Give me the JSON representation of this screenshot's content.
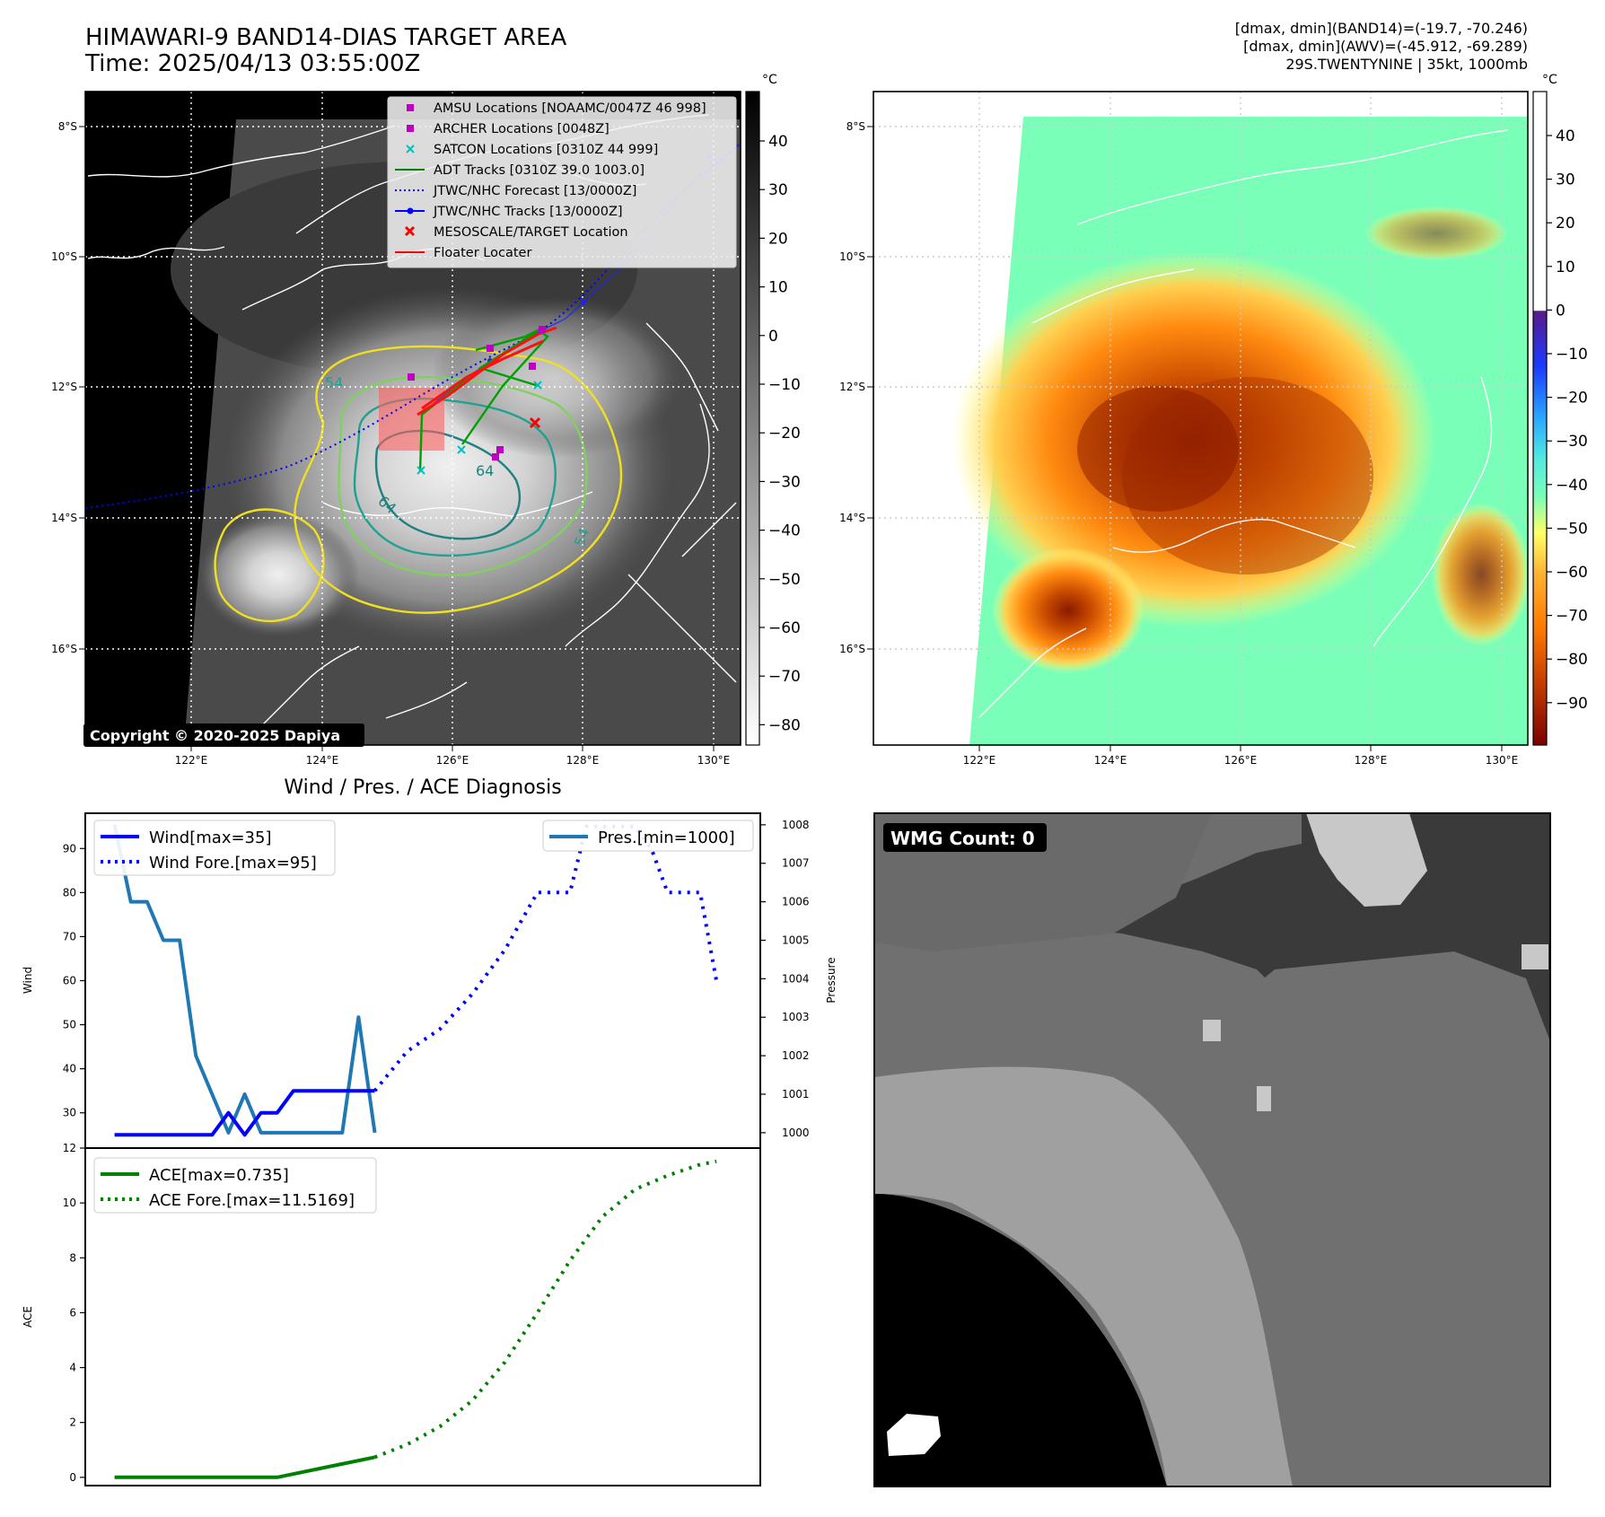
{
  "header": {
    "title_line1": "HIMAWARI-9 BAND14-DIAS TARGET AREA",
    "title_line2": "Time: 2025/04/13 03:55:00Z",
    "info_line1": "[dmax, dmin](BAND14)=(-19.7, -70.246)",
    "info_line2": "[dmax, dmin](AWV)=(-45.912, -69.289)",
    "info_line3": "29S.TWENTYNINE | 35kt, 1000mb"
  },
  "map": {
    "lat_labels": [
      "8°S",
      "10°S",
      "12°S",
      "14°S",
      "16°S"
    ],
    "lon_labels": [
      "122°E",
      "124°E",
      "126°E",
      "128°E",
      "130°E"
    ],
    "copyright": "Copyright © 2020-2025 Dapiya",
    "contour_labels": [
      "54",
      "64",
      "64",
      "54"
    ],
    "legend": [
      {
        "label": "AMSU Locations [NOAAMC/0047Z 46 998]",
        "marker": "square",
        "color": "#c000c0"
      },
      {
        "label": "ARCHER Locations [0048Z]",
        "marker": "square",
        "color": "#c000c0"
      },
      {
        "label": "SATCON Locations [0310Z 44 999]",
        "marker": "x",
        "color": "#00c0c0"
      },
      {
        "label": "ADT Tracks [0310Z 39.0 1003.0]",
        "marker": "line",
        "color": "#008000"
      },
      {
        "label": "JTWC/NHC Forecast [13/0000Z]",
        "marker": "dotted",
        "color": "#0000ff"
      },
      {
        "label": "JTWC/NHC Tracks [13/0000Z]",
        "marker": "line-dot",
        "color": "#0000ff"
      },
      {
        "label": "MESOSCALE/TARGET Location",
        "marker": "x",
        "color": "#ff0000"
      },
      {
        "label": "Floater Locater",
        "marker": "line",
        "color": "#ff0000"
      }
    ]
  },
  "colorbar_gray": {
    "unit": "°C",
    "ticks": [
      "40",
      "30",
      "20",
      "10",
      "0",
      "−10",
      "−20",
      "−30",
      "−40",
      "−50",
      "−60",
      "−70",
      "−80"
    ]
  },
  "colorbar_color": {
    "unit": "°C",
    "ticks": [
      "40",
      "30",
      "20",
      "10",
      "0",
      "−10",
      "−20",
      "−30",
      "−40",
      "−50",
      "−60",
      "−70",
      "−80",
      "−90"
    ],
    "colors": [
      "#ffffff",
      "#5a1a8a",
      "#1a3aff",
      "#2aa8ff",
      "#50e8e0",
      "#7affb8",
      "#ffff66",
      "#ffb030",
      "#ff7a00",
      "#c84000",
      "#7a0000"
    ]
  },
  "chart_data": [
    {
      "type": "line",
      "title": "Wind / Pres. / ACE Diagnosis",
      "ylabel": "Wind",
      "ylabel_right": "Pressure",
      "ylim": [
        22,
        98
      ],
      "ylim_right": [
        999.6,
        1008.3
      ],
      "yticks": [
        30,
        40,
        50,
        60,
        70,
        80,
        90
      ],
      "yticks_right": [
        1000,
        1001,
        1002,
        1003,
        1004,
        1005,
        1006,
        1007,
        1008
      ],
      "x": [
        0,
        1,
        2,
        3,
        4,
        5,
        6,
        7,
        8,
        9,
        10,
        11,
        12,
        13,
        14,
        15,
        16,
        17,
        18,
        19,
        20,
        21,
        22,
        23,
        24,
        25,
        26,
        27,
        28,
        29,
        30,
        31,
        32,
        33,
        34,
        35,
        36,
        37
      ],
      "xlim": [
        -1.8,
        39.7
      ],
      "series": [
        {
          "name": "Wind[max=35]",
          "style": "solid",
          "color": "#0000ff",
          "x": [
            0,
            6,
            7,
            8,
            9,
            10,
            11,
            12,
            16
          ],
          "values": [
            25,
            25,
            30,
            25,
            30,
            30,
            35,
            35,
            35
          ]
        },
        {
          "name": "Wind Fore.[max=95]",
          "style": "dotted",
          "color": "#0000ff",
          "x": [
            16,
            18,
            20,
            22,
            24,
            26,
            27,
            28,
            29,
            30,
            31,
            32,
            33,
            34,
            35,
            36,
            37
          ],
          "values": [
            35,
            44,
            49,
            57,
            67,
            80,
            80,
            80,
            95,
            95,
            95,
            95,
            90,
            80,
            80,
            80,
            60
          ]
        },
        {
          "name": "Pres.[min=1000]",
          "style": "solid",
          "color": "#1f77b4",
          "axis": "right",
          "x": [
            0,
            1,
            2,
            3,
            4,
            5,
            6,
            7,
            8,
            9,
            10,
            11,
            12,
            13,
            14,
            15,
            16
          ],
          "values": [
            1008,
            1006,
            1006,
            1005,
            1005,
            1002,
            1001,
            1000,
            1001,
            1000,
            1000,
            1000,
            1000,
            1000,
            1000,
            1003,
            1000
          ]
        }
      ]
    },
    {
      "type": "line",
      "ylabel": "ACE",
      "ylim": [
        -0.3,
        12
      ],
      "yticks": [
        0,
        2,
        4,
        6,
        8,
        10,
        12
      ],
      "xlim": [
        -1.8,
        39.7
      ],
      "series": [
        {
          "name": "ACE[max=0.735]",
          "style": "solid",
          "color": "#008000",
          "x": [
            0,
            10,
            16
          ],
          "values": [
            0,
            0,
            0.735
          ]
        },
        {
          "name": "ACE Fore.[max=11.5169]",
          "style": "dotted",
          "color": "#008000",
          "x": [
            16,
            18,
            20,
            22,
            24,
            26,
            28,
            30,
            32,
            34,
            36,
            37
          ],
          "values": [
            0.735,
            1.2,
            1.85,
            2.8,
            4.2,
            6.0,
            7.9,
            9.5,
            10.5,
            11.0,
            11.4,
            11.5169
          ]
        }
      ]
    }
  ],
  "wmg": {
    "label": "WMG Count: 0"
  }
}
